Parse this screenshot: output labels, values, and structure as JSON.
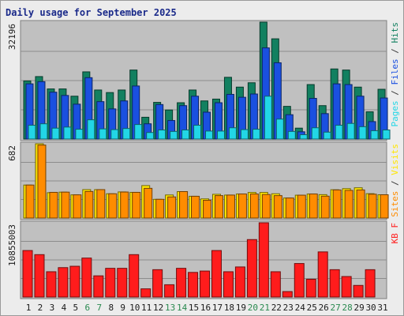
{
  "chart_data": {
    "type": "bar",
    "title": "Daily usage for September 2025",
    "x": [
      "1",
      "2",
      "3",
      "4",
      "5",
      "6",
      "7",
      "8",
      "9",
      "10",
      "11",
      "12",
      "13",
      "14",
      "15",
      "16",
      "17",
      "18",
      "19",
      "20",
      "21",
      "22",
      "23",
      "24",
      "25",
      "26",
      "27",
      "28",
      "29",
      "30",
      "31"
    ],
    "weekend_days": [
      "6",
      "7",
      "13",
      "14",
      "20",
      "21",
      "27",
      "28"
    ],
    "panels": [
      {
        "name": "hits-files-pages",
        "ylabel_parts": [
          {
            "text": "Pages",
            "color": "#22d6e6"
          },
          {
            "text": " / ",
            "color": "#3a3a3a"
          },
          {
            "text": "Files",
            "color": "#1a50e0"
          },
          {
            "text": " / ",
            "color": "#3a3a3a"
          },
          {
            "text": "Hits",
            "color": "#128060"
          }
        ],
        "max_label": "32196",
        "ylim": [
          0,
          32196
        ],
        "series": [
          {
            "name": "Hits",
            "color": "#128060",
            "values": [
              16000,
              17200,
              13800,
              13800,
              11800,
              18500,
              13500,
              12800,
              13500,
              19000,
              6000,
              10100,
              8000,
              10000,
              13500,
              10500,
              11000,
              17000,
              14300,
              15500,
              32196,
              27600,
              9000,
              3000,
              15000,
              9200,
              19300,
              19000,
              14300,
              7500,
              13700
            ]
          },
          {
            "name": "Files",
            "color": "#1a50e0",
            "values": [
              15200,
              15800,
              12900,
              12000,
              9600,
              16900,
              10300,
              8300,
              10500,
              14600,
              4200,
              9500,
              5100,
              9200,
              11800,
              7400,
              10000,
              12300,
              11500,
              12400,
              25100,
              21000,
              6700,
              2000,
              11200,
              7000,
              15200,
              15000,
              11800,
              4800,
              11300
            ]
          },
          {
            "name": "Pages",
            "color": "#22d6e6",
            "values": [
              3800,
              4200,
              3000,
              3300,
              2700,
              5300,
              2800,
              2600,
              2900,
              4000,
              1800,
              2500,
              2100,
              2500,
              3800,
              2200,
              2200,
              3100,
              2600,
              2700,
              11800,
              5500,
              2100,
              1200,
              3100,
              1900,
              3800,
              4300,
              3400,
              2300,
              2500
            ]
          }
        ]
      },
      {
        "name": "visits-sites",
        "ylabel_parts": [
          {
            "text": "Sites",
            "color": "#ff8c00"
          },
          {
            "text": " / ",
            "color": "#3a3a3a"
          },
          {
            "text": "Visits",
            "color": "#ffe600"
          }
        ],
        "max_label": "682",
        "ylim": [
          0,
          682
        ],
        "series": [
          {
            "name": "Visits",
            "color": "#ffe600",
            "values": [
              303,
              682,
              233,
              238,
              213,
              261,
              261,
              223,
              240,
              236,
              298,
              172,
              212,
              243,
              200,
              176,
              218,
              211,
              221,
              235,
              235,
              223,
              184,
              210,
              221,
              215,
              260,
              270,
              278,
              224,
              214
            ]
          },
          {
            "name": "Sites",
            "color": "#ff8c00",
            "values": [
              303,
              670,
              236,
              238,
              213,
              244,
              261,
              223,
              239,
              236,
              273,
              172,
              194,
              243,
              200,
              163,
              206,
              211,
              221,
              221,
              216,
              206,
              184,
              210,
              221,
              201,
              258,
              254,
              258,
              219,
              214
            ]
          }
        ]
      },
      {
        "name": "kb",
        "ylabel_parts": [
          {
            "text": "KB F",
            "color": "#ff2020"
          }
        ],
        "max_label": "10855003",
        "ylim": [
          0,
          10855003
        ],
        "series": [
          {
            "name": "KB F",
            "color": "#ff1c1c",
            "values": [
              6800000,
              6200000,
              3700000,
              4300000,
              4500000,
              5700000,
              3100000,
              4200000,
              4200000,
              6200000,
              1200000,
              4000000,
              1800000,
              4200000,
              3600000,
              3800000,
              6800000,
              3700000,
              4400000,
              8400000,
              10855003,
              3700000,
              800000,
              4900000,
              2600000,
              6600000,
              4000000,
              3000000,
              1700000,
              4000000,
              0
            ]
          }
        ]
      }
    ]
  }
}
